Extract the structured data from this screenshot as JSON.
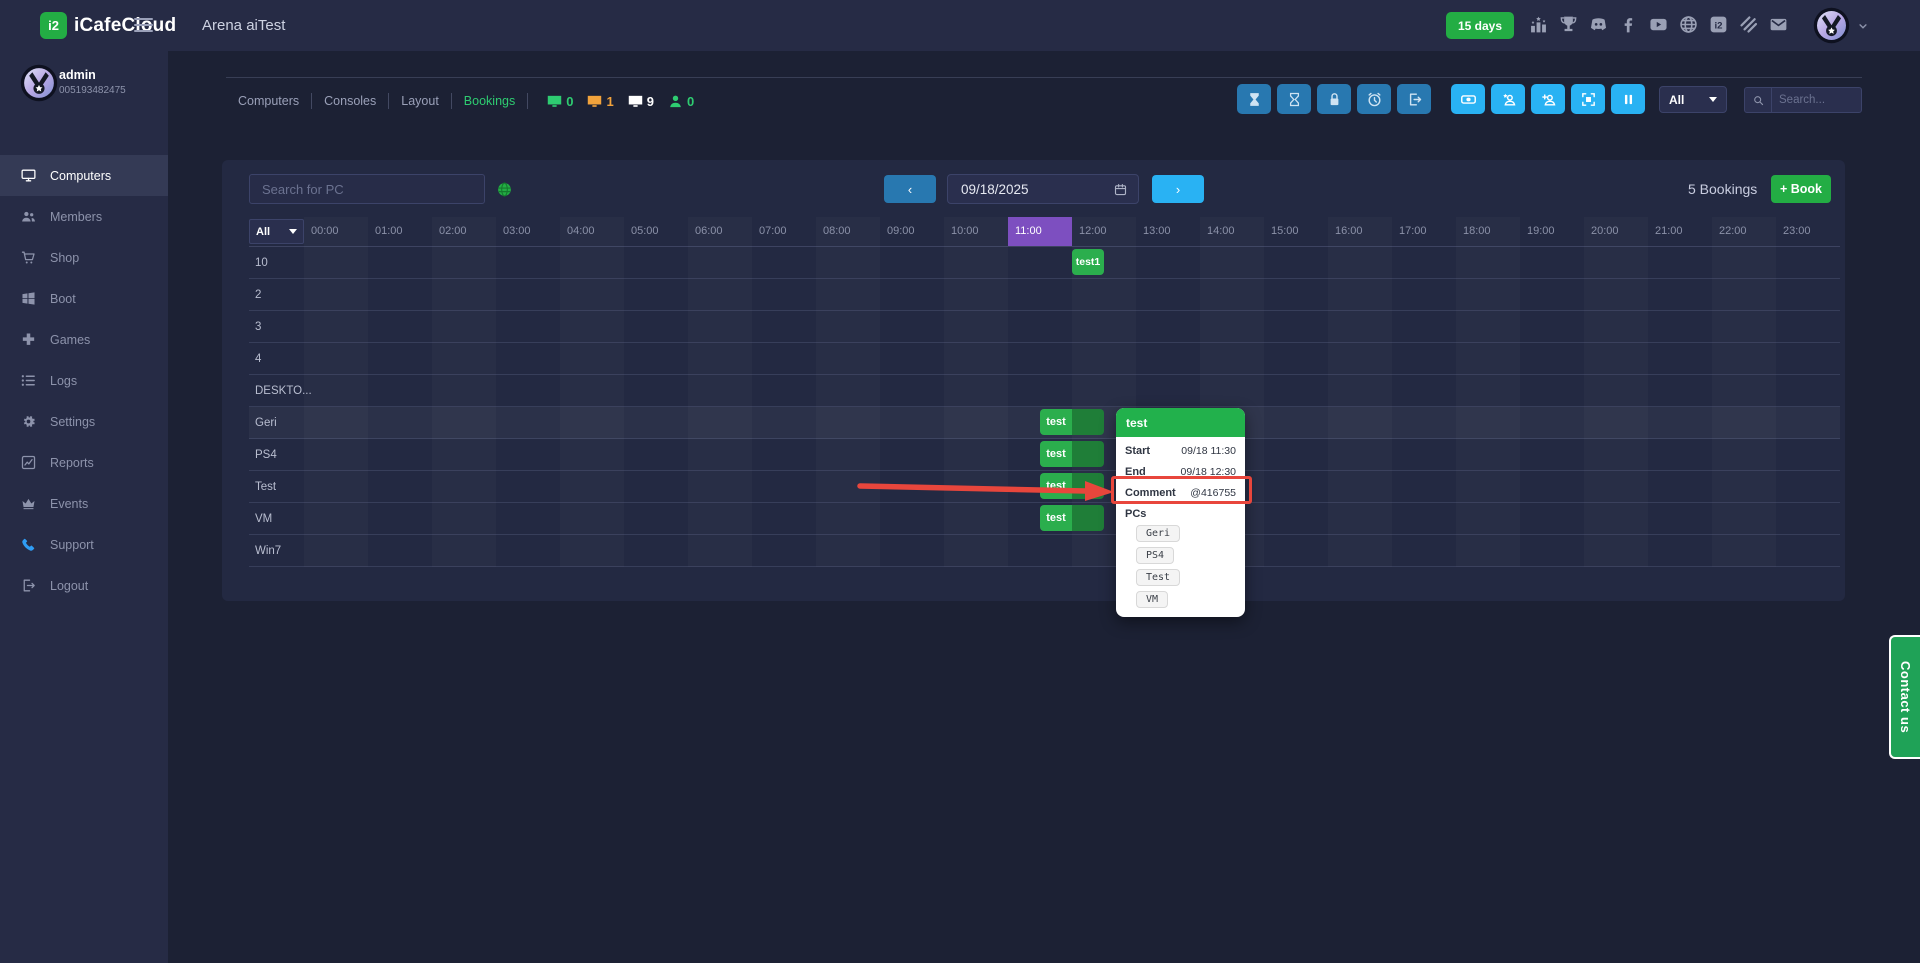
{
  "colors": {
    "green": "#23ad44",
    "bright_blue": "#29b2f3",
    "steel_blue": "#2878b0",
    "purple": "#7d4fc0",
    "red": "#e8463c",
    "chip_green": "#2bae4d",
    "chip_green_dark": "#1f7e38",
    "tooltip_green": "#22b14c"
  },
  "header": {
    "logo_mark": "i2",
    "logo_text": "iCafeCloud",
    "page_title": "Arena aiTest",
    "trial_badge": "15 days",
    "social_icons": [
      "ranking",
      "trophy",
      "discord",
      "facebook",
      "youtube",
      "globe",
      "icafecloud",
      "layers",
      "mail"
    ]
  },
  "sidebar": {
    "user": {
      "name": "admin",
      "id": "005193482475"
    },
    "items": [
      {
        "label": "Computers",
        "icon": "computers",
        "active": true
      },
      {
        "label": "Members",
        "icon": "members",
        "active": false
      },
      {
        "label": "Shop",
        "icon": "shop",
        "active": false
      },
      {
        "label": "Boot",
        "icon": "boot",
        "active": false
      },
      {
        "label": "Games",
        "icon": "games",
        "active": false
      },
      {
        "label": "Logs",
        "icon": "logs",
        "active": false
      },
      {
        "label": "Settings",
        "icon": "settings",
        "active": false
      },
      {
        "label": "Reports",
        "icon": "reports",
        "active": false
      },
      {
        "label": "Events",
        "icon": "events",
        "active": false
      },
      {
        "label": "Support",
        "icon": "support",
        "active": false,
        "accent": true
      },
      {
        "label": "Logout",
        "icon": "logout",
        "active": false
      }
    ]
  },
  "toolbar": {
    "tabs": [
      {
        "label": "Computers",
        "active": false
      },
      {
        "label": "Consoles",
        "active": false
      },
      {
        "label": "Layout",
        "active": false
      },
      {
        "label": "Bookings",
        "active": true
      }
    ],
    "counters": [
      {
        "icon": "monitor",
        "value": "0",
        "color": "#2ecc71"
      },
      {
        "icon": "monitor",
        "value": "1",
        "color": "#f2a33c"
      },
      {
        "icon": "monitor",
        "value": "9",
        "color": "#ffffff"
      },
      {
        "icon": "person",
        "value": "0",
        "color": "#2ecc71"
      }
    ],
    "action_groups": [
      {
        "style": "steel",
        "buttons": [
          "hourglass-filled",
          "hourglass",
          "lock",
          "alarm",
          "signout"
        ]
      },
      {
        "style": "bright",
        "buttons": [
          "cash",
          "user-star",
          "user-plus",
          "capture",
          "pause"
        ]
      }
    ],
    "filter_value": "All",
    "search_placeholder": "Search..."
  },
  "bookings": {
    "pc_search_placeholder": "Search for PC",
    "date_value": "09/18/2025",
    "count_label": "5 Bookings",
    "book_button": "+ Book",
    "row_filter_value": "All",
    "hours": [
      "00:00",
      "01:00",
      "02:00",
      "03:00",
      "04:00",
      "05:00",
      "06:00",
      "07:00",
      "08:00",
      "09:00",
      "10:00",
      "11:00",
      "12:00",
      "13:00",
      "14:00",
      "15:00",
      "16:00",
      "17:00",
      "18:00",
      "19:00",
      "20:00",
      "21:00",
      "22:00",
      "23:00"
    ],
    "highlighted_hour": "11:00",
    "highlighted_row": "Geri",
    "rows": [
      "10",
      "2",
      "3",
      "4",
      "DESKTO...",
      "Geri",
      "PS4",
      "Test",
      "VM",
      "Win7"
    ],
    "events": [
      {
        "row": "10",
        "label": "test1",
        "start": "12:00",
        "end": "12:30",
        "split": false
      },
      {
        "row": "Geri",
        "label": "test",
        "start": "11:30",
        "end": "12:30",
        "split": true
      },
      {
        "row": "PS4",
        "label": "test",
        "start": "11:30",
        "end": "12:30",
        "split": true
      },
      {
        "row": "Test",
        "label": "test",
        "start": "11:30",
        "end": "12:30",
        "split": true
      },
      {
        "row": "VM",
        "label": "test",
        "start": "11:30",
        "end": "12:30",
        "split": true
      }
    ]
  },
  "tooltip": {
    "title": "test",
    "fields": [
      {
        "label": "Start",
        "value": "09/18 11:30"
      },
      {
        "label": "End",
        "value": "09/18 12:30"
      },
      {
        "label": "Comment",
        "value": "@416755",
        "highlighted": true
      }
    ],
    "pcs_label": "PCs",
    "pcs": [
      "Geri",
      "PS4",
      "Test",
      "VM"
    ]
  },
  "contact_tab": "Contact us"
}
